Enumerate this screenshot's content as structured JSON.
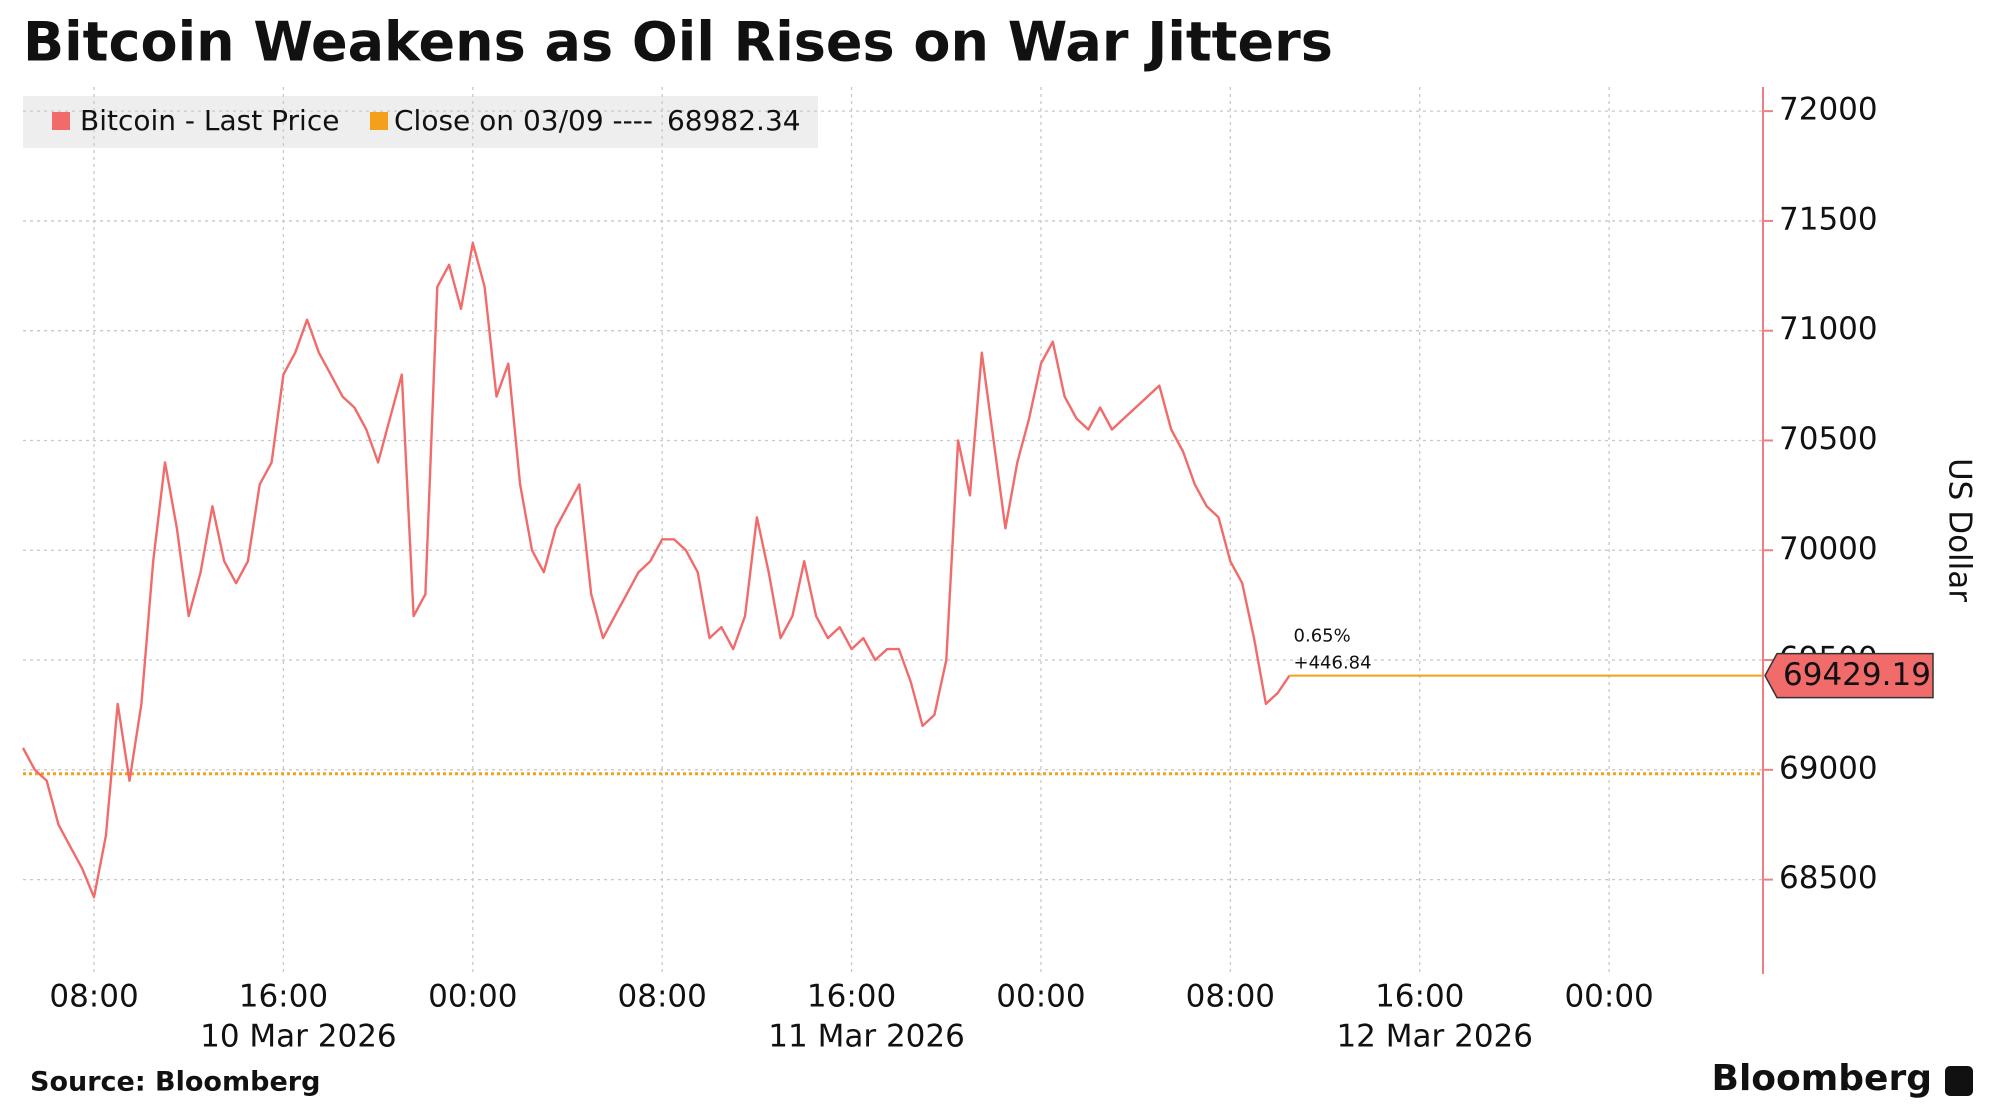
{
  "chart_data": {
    "type": "line",
    "title": "Bitcoin Weakens as Oil Rises on War Jitters",
    "y_axis_label": "US Dollar",
    "source": "Source: Bloomberg",
    "brand": "Bloomberg",
    "x": [
      "2026-03-10 05:00",
      "2026-03-10 05:30",
      "2026-03-10 06:00",
      "2026-03-10 06:30",
      "2026-03-10 07:00",
      "2026-03-10 07:30",
      "2026-03-10 08:00",
      "2026-03-10 08:30",
      "2026-03-10 09:00",
      "2026-03-10 09:30",
      "2026-03-10 10:00",
      "2026-03-10 10:30",
      "2026-03-10 11:00",
      "2026-03-10 11:30",
      "2026-03-10 12:00",
      "2026-03-10 12:30",
      "2026-03-10 13:00",
      "2026-03-10 13:30",
      "2026-03-10 14:00",
      "2026-03-10 14:30",
      "2026-03-10 15:00",
      "2026-03-10 15:30",
      "2026-03-10 16:00",
      "2026-03-10 16:30",
      "2026-03-10 17:00",
      "2026-03-10 17:30",
      "2026-03-10 18:00",
      "2026-03-10 18:30",
      "2026-03-10 19:00",
      "2026-03-10 19:30",
      "2026-03-10 20:00",
      "2026-03-10 20:30",
      "2026-03-10 21:00",
      "2026-03-10 21:30",
      "2026-03-10 22:00",
      "2026-03-10 22:30",
      "2026-03-10 23:00",
      "2026-03-10 23:30",
      "2026-03-11 00:00",
      "2026-03-11 00:30",
      "2026-03-11 01:00",
      "2026-03-11 01:30",
      "2026-03-11 02:00",
      "2026-03-11 02:30",
      "2026-03-11 03:00",
      "2026-03-11 03:30",
      "2026-03-11 04:00",
      "2026-03-11 04:30",
      "2026-03-11 05:00",
      "2026-03-11 05:30",
      "2026-03-11 06:00",
      "2026-03-11 06:30",
      "2026-03-11 07:00",
      "2026-03-11 07:30",
      "2026-03-11 08:00",
      "2026-03-11 08:30",
      "2026-03-11 09:00",
      "2026-03-11 09:30",
      "2026-03-11 10:00",
      "2026-03-11 10:30",
      "2026-03-11 11:00",
      "2026-03-11 11:30",
      "2026-03-11 12:00",
      "2026-03-11 12:30",
      "2026-03-11 13:00",
      "2026-03-11 13:30",
      "2026-03-11 14:00",
      "2026-03-11 14:30",
      "2026-03-11 15:00",
      "2026-03-11 15:30",
      "2026-03-11 16:00",
      "2026-03-11 16:30",
      "2026-03-11 17:00",
      "2026-03-11 17:30",
      "2026-03-11 18:00",
      "2026-03-11 18:30",
      "2026-03-11 19:00",
      "2026-03-11 19:30",
      "2026-03-11 20:00",
      "2026-03-11 20:30",
      "2026-03-11 21:00",
      "2026-03-11 21:30",
      "2026-03-11 22:00",
      "2026-03-11 22:30",
      "2026-03-11 23:00",
      "2026-03-11 23:30",
      "2026-03-12 00:00",
      "2026-03-12 00:30",
      "2026-03-12 01:00",
      "2026-03-12 01:30",
      "2026-03-12 02:00",
      "2026-03-12 02:30",
      "2026-03-12 03:00",
      "2026-03-12 03:30",
      "2026-03-12 04:00",
      "2026-03-12 04:30",
      "2026-03-12 05:00",
      "2026-03-12 05:30",
      "2026-03-12 06:00",
      "2026-03-12 06:30",
      "2026-03-12 07:00",
      "2026-03-12 07:30",
      "2026-03-12 08:00",
      "2026-03-12 08:30",
      "2026-03-12 09:00",
      "2026-03-12 09:30",
      "2026-03-12 10:00",
      "2026-03-12 10:30"
    ],
    "series": [
      {
        "name": "Bitcoin - Last Price",
        "color": "#f26b6b",
        "values": [
          69100,
          69000,
          68950,
          68750,
          68650,
          68550,
          68420,
          68700,
          69300,
          68950,
          69300,
          69950,
          70400,
          70100,
          69700,
          69900,
          70200,
          69950,
          69850,
          69950,
          70300,
          70400,
          70800,
          70900,
          71050,
          70900,
          70800,
          70700,
          70650,
          70550,
          70400,
          70600,
          70800,
          69700,
          69800,
          71200,
          71300,
          71100,
          71400,
          71200,
          70700,
          70850,
          70300,
          70000,
          69900,
          70100,
          70200,
          70300,
          69800,
          69600,
          69700,
          69800,
          69900,
          69950,
          70050,
          70050,
          70000,
          69900,
          69600,
          69650,
          69550,
          69700,
          70150,
          69900,
          69600,
          69700,
          69950,
          69700,
          69600,
          69650,
          69550,
          69600,
          69500,
          69550,
          69550,
          69400,
          69200,
          69250,
          69500,
          70500,
          70250,
          70900,
          70500,
          70100,
          70400,
          70600,
          70850,
          70950,
          70700,
          70600,
          70550,
          70650,
          70550,
          70600,
          70650,
          70700,
          70750,
          70550,
          70450,
          70300,
          70200,
          70150,
          69950,
          69850,
          69600,
          69300,
          69350,
          69429.19
        ]
      }
    ],
    "reference_line": {
      "name": "Close on 03/09 ----",
      "value": 68982.34,
      "color": "#f5a01a"
    },
    "last_price": 69429.19,
    "annotations": [
      "0.65%",
      "+446.84"
    ],
    "xlim": [
      "2026-03-10 05:00",
      "2026-03-13 06:30"
    ],
    "xticks": [
      {
        "value": "2026-03-10 08:00",
        "label": "08:00"
      },
      {
        "value": "2026-03-10 16:00",
        "label": "16:00"
      },
      {
        "value": "2026-03-11 00:00",
        "label": "00:00"
      },
      {
        "value": "2026-03-11 08:00",
        "label": "08:00"
      },
      {
        "value": "2026-03-11 16:00",
        "label": "16:00"
      },
      {
        "value": "2026-03-12 00:00",
        "label": "00:00"
      },
      {
        "value": "2026-03-12 08:00",
        "label": "08:00"
      },
      {
        "value": "2026-03-12 16:00",
        "label": "16:00"
      },
      {
        "value": "2026-03-13 00:00",
        "label": "00:00"
      }
    ],
    "x_date_labels": [
      {
        "value": "2026-03-10 16:00",
        "label": "10 Mar 2026"
      },
      {
        "value": "2026-03-11 16:00",
        "label": "11 Mar 2026"
      },
      {
        "value": "2026-03-12 16:00",
        "label": "12 Mar 2026"
      }
    ],
    "ylim": [
      68070,
      72110
    ],
    "yticks": [
      68500,
      69000,
      69500,
      70000,
      70500,
      71000,
      71500,
      72000
    ],
    "grid": true
  }
}
